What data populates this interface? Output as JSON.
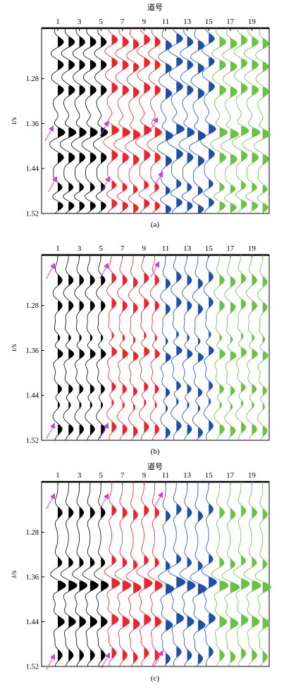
{
  "figure": {
    "panels": [
      {
        "caption": "(a)"
      },
      {
        "caption": "(b)"
      },
      {
        "caption": "(c)"
      }
    ]
  },
  "chart_data": [
    {
      "type": "wiggle-seismic",
      "panel": "(a)",
      "top_axis_title": "道号",
      "ylabel": "t/s",
      "x_ticks": [
        "1",
        "3",
        "5",
        "7",
        "9",
        "11",
        "13",
        "15",
        "17",
        "19"
      ],
      "y_ticks": [
        "1.28",
        "1.36",
        "1.44",
        "1.52"
      ],
      "ylim": [
        1.19,
        1.52
      ],
      "trace_count": 20,
      "trace_groups": [
        {
          "traces": [
            1,
            2,
            3,
            4,
            5
          ],
          "color": "#000000"
        },
        {
          "traces": [
            6,
            7,
            8,
            9,
            10
          ],
          "color": "#e8262b"
        },
        {
          "traces": [
            11,
            12,
            13,
            14,
            15
          ],
          "color": "#1f4fa8"
        },
        {
          "traces": [
            16,
            17,
            18,
            19,
            20
          ],
          "color": "#6cc04a"
        }
      ],
      "arrow_color": "#d03fd6",
      "black_peak_times": [
        1.215,
        1.255,
        1.3,
        1.35,
        1.375,
        1.42,
        1.475,
        1.505
      ],
      "black_peak_amps": [
        0.8,
        0.8,
        0.8,
        0.5,
        1.2,
        0.8,
        0.8,
        0.9
      ]
    },
    {
      "type": "wiggle-seismic",
      "panel": "(b)",
      "top_axis_title": "",
      "ylabel": "t/s",
      "x_ticks": [
        "1",
        "3",
        "5",
        "7",
        "9",
        "11",
        "13",
        "15",
        "17",
        "19"
      ],
      "y_ticks": [
        "1.28",
        "1.36",
        "1.44",
        "1.52"
      ],
      "ylim": [
        1.19,
        1.52
      ],
      "trace_count": 20,
      "arrow_color": "#d03fd6",
      "black_peak_times": [
        1.235,
        1.28,
        1.34,
        1.365,
        1.43,
        1.455,
        1.5
      ],
      "black_peak_amps": [
        0.6,
        0.6,
        0.7,
        1.0,
        0.8,
        0.6,
        0.6
      ]
    },
    {
      "type": "wiggle-seismic",
      "panel": "(c)",
      "top_axis_title": "道号",
      "ylabel": "t/s",
      "x_ticks": [
        "1",
        "3",
        "5",
        "7",
        "9",
        "11",
        "13",
        "15",
        "17",
        "19"
      ],
      "y_ticks": [
        "1.28",
        "1.36",
        "1.44",
        "1.52"
      ],
      "ylim": [
        1.19,
        1.52
      ],
      "trace_count": 20,
      "arrow_color": "#d03fd6",
      "black_peak_times": [
        1.245,
        1.335,
        1.375,
        1.44,
        1.5
      ],
      "black_peak_amps": [
        0.6,
        0.6,
        1.1,
        0.9,
        0.6
      ]
    }
  ]
}
